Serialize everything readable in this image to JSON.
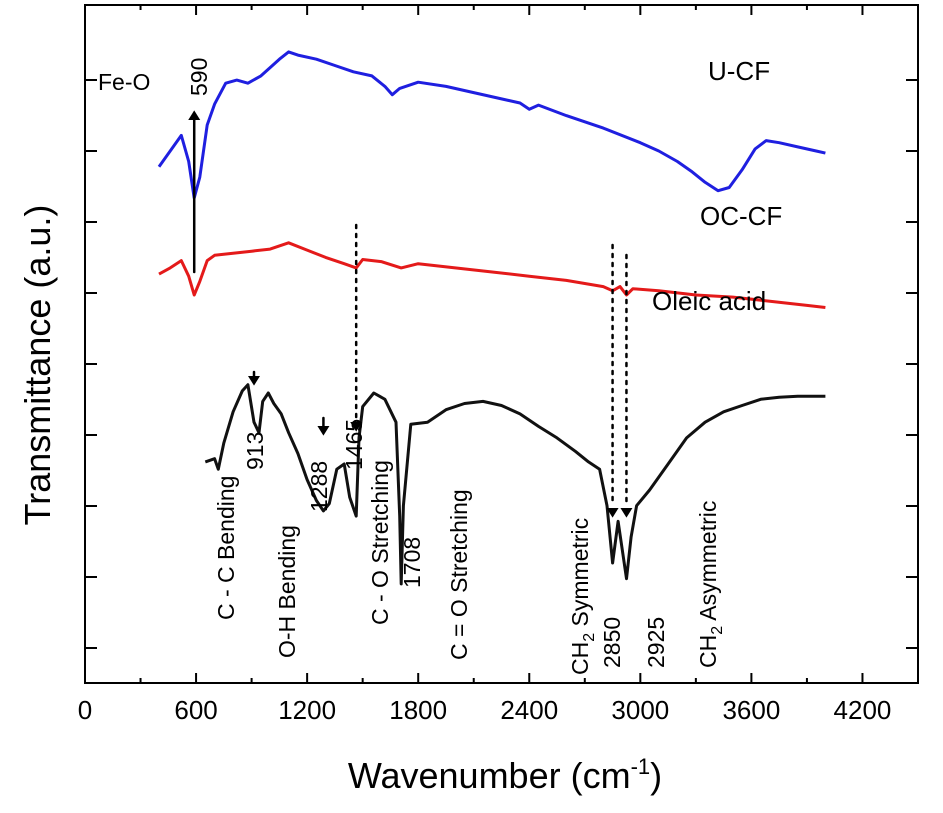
{
  "chart_data": {
    "type": "line",
    "title": "",
    "xlabel": "Wavenumber",
    "xlabel_unit": "(cm",
    "xlabel_unit_sup": "-1",
    "xlabel_unit_close": ")",
    "ylabel": "Transmittance (a.u.)",
    "xlim": [
      0,
      4500
    ],
    "x_ticks": [
      "0",
      "600",
      "1200",
      "1800",
      "2400",
      "3000",
      "3600",
      "4200"
    ],
    "y_tick_count": 9,
    "grid": false,
    "legend": "none",
    "series": [
      {
        "name": "U-CF",
        "color": "#1f1fe0",
        "points": [
          [
            400,
            4.95
          ],
          [
            460,
            5.1
          ],
          [
            520,
            5.25
          ],
          [
            560,
            5.0
          ],
          [
            590,
            4.65
          ],
          [
            620,
            4.85
          ],
          [
            660,
            5.35
          ],
          [
            700,
            5.55
          ],
          [
            760,
            5.75
          ],
          [
            820,
            5.78
          ],
          [
            880,
            5.75
          ],
          [
            950,
            5.82
          ],
          [
            1000,
            5.9
          ],
          [
            1050,
            5.98
          ],
          [
            1100,
            6.05
          ],
          [
            1150,
            6.02
          ],
          [
            1250,
            5.98
          ],
          [
            1350,
            5.92
          ],
          [
            1450,
            5.86
          ],
          [
            1550,
            5.82
          ],
          [
            1620,
            5.72
          ],
          [
            1660,
            5.64
          ],
          [
            1700,
            5.7
          ],
          [
            1800,
            5.76
          ],
          [
            1950,
            5.72
          ],
          [
            2100,
            5.66
          ],
          [
            2250,
            5.6
          ],
          [
            2350,
            5.56
          ],
          [
            2400,
            5.5
          ],
          [
            2450,
            5.54
          ],
          [
            2600,
            5.44
          ],
          [
            2800,
            5.32
          ],
          [
            3000,
            5.18
          ],
          [
            3100,
            5.1
          ],
          [
            3200,
            5.0
          ],
          [
            3280,
            4.9
          ],
          [
            3350,
            4.8
          ],
          [
            3420,
            4.72
          ],
          [
            3480,
            4.75
          ],
          [
            3550,
            4.92
          ],
          [
            3620,
            5.12
          ],
          [
            3680,
            5.2
          ],
          [
            3750,
            5.18
          ],
          [
            3850,
            5.14
          ],
          [
            3950,
            5.1
          ],
          [
            4000,
            5.08
          ]
        ]
      },
      {
        "name": "OC-CF",
        "color": "#e41a1a",
        "points": [
          [
            400,
            3.92
          ],
          [
            460,
            3.98
          ],
          [
            520,
            4.05
          ],
          [
            560,
            3.9
          ],
          [
            590,
            3.72
          ],
          [
            620,
            3.85
          ],
          [
            660,
            4.05
          ],
          [
            700,
            4.1
          ],
          [
            800,
            4.12
          ],
          [
            900,
            4.14
          ],
          [
            1000,
            4.16
          ],
          [
            1100,
            4.22
          ],
          [
            1200,
            4.15
          ],
          [
            1300,
            4.08
          ],
          [
            1400,
            4.02
          ],
          [
            1465,
            3.98
          ],
          [
            1500,
            4.06
          ],
          [
            1600,
            4.04
          ],
          [
            1708,
            3.98
          ],
          [
            1800,
            4.02
          ],
          [
            2000,
            3.98
          ],
          [
            2200,
            3.94
          ],
          [
            2400,
            3.9
          ],
          [
            2600,
            3.86
          ],
          [
            2800,
            3.8
          ],
          [
            2850,
            3.76
          ],
          [
            2890,
            3.8
          ],
          [
            2925,
            3.72
          ],
          [
            2960,
            3.78
          ],
          [
            3100,
            3.76
          ],
          [
            3300,
            3.72
          ],
          [
            3500,
            3.7
          ],
          [
            3700,
            3.66
          ],
          [
            3900,
            3.62
          ],
          [
            4000,
            3.6
          ]
        ]
      },
      {
        "name": "Oleic acid",
        "color": "#111111",
        "points": [
          [
            650,
            2.12
          ],
          [
            700,
            2.15
          ],
          [
            720,
            2.05
          ],
          [
            750,
            2.3
          ],
          [
            800,
            2.6
          ],
          [
            850,
            2.8
          ],
          [
            880,
            2.86
          ],
          [
            913,
            2.5
          ],
          [
            940,
            2.4
          ],
          [
            960,
            2.7
          ],
          [
            990,
            2.78
          ],
          [
            1020,
            2.68
          ],
          [
            1060,
            2.58
          ],
          [
            1100,
            2.4
          ],
          [
            1150,
            2.2
          ],
          [
            1200,
            1.95
          ],
          [
            1250,
            1.75
          ],
          [
            1288,
            1.65
          ],
          [
            1320,
            1.72
          ],
          [
            1360,
            2.05
          ],
          [
            1400,
            2.1
          ],
          [
            1430,
            1.78
          ],
          [
            1465,
            1.6
          ],
          [
            1480,
            2.35
          ],
          [
            1500,
            2.65
          ],
          [
            1560,
            2.78
          ],
          [
            1620,
            2.72
          ],
          [
            1680,
            2.5
          ],
          [
            1700,
            1.6
          ],
          [
            1708,
            0.95
          ],
          [
            1720,
            1.7
          ],
          [
            1760,
            2.48
          ],
          [
            1850,
            2.5
          ],
          [
            1950,
            2.62
          ],
          [
            2050,
            2.68
          ],
          [
            2150,
            2.7
          ],
          [
            2250,
            2.66
          ],
          [
            2350,
            2.58
          ],
          [
            2450,
            2.46
          ],
          [
            2550,
            2.35
          ],
          [
            2650,
            2.22
          ],
          [
            2720,
            2.12
          ],
          [
            2780,
            2.05
          ],
          [
            2820,
            1.7
          ],
          [
            2850,
            1.15
          ],
          [
            2880,
            1.55
          ],
          [
            2925,
            1.0
          ],
          [
            2950,
            1.4
          ],
          [
            2980,
            1.7
          ],
          [
            3050,
            1.85
          ],
          [
            3150,
            2.1
          ],
          [
            3250,
            2.35
          ],
          [
            3350,
            2.5
          ],
          [
            3450,
            2.6
          ],
          [
            3550,
            2.66
          ],
          [
            3650,
            2.72
          ],
          [
            3750,
            2.74
          ],
          [
            3850,
            2.75
          ],
          [
            4000,
            2.75
          ]
        ]
      }
    ],
    "series_labels": [
      {
        "text": "U-CF"
      },
      {
        "text": "OC-CF"
      },
      {
        "text": "Oleic acid"
      }
    ],
    "annotations": [
      {
        "label": "Fe-O",
        "value": "590"
      },
      {
        "value": "913",
        "label": "C - C Bending"
      },
      {
        "value": "1288",
        "label": "O-H Bending"
      },
      {
        "value": "1465",
        "label": "C - O Stretching"
      },
      {
        "value": "1708",
        "label": "C = O Stretching"
      },
      {
        "value": "2850",
        "label": "CH",
        "label_sub": "2",
        "label_rest": " Symmetric"
      },
      {
        "value": "2925",
        "label": "CH",
        "label_sub": "2",
        "label_rest": " Asymmetric"
      }
    ]
  }
}
